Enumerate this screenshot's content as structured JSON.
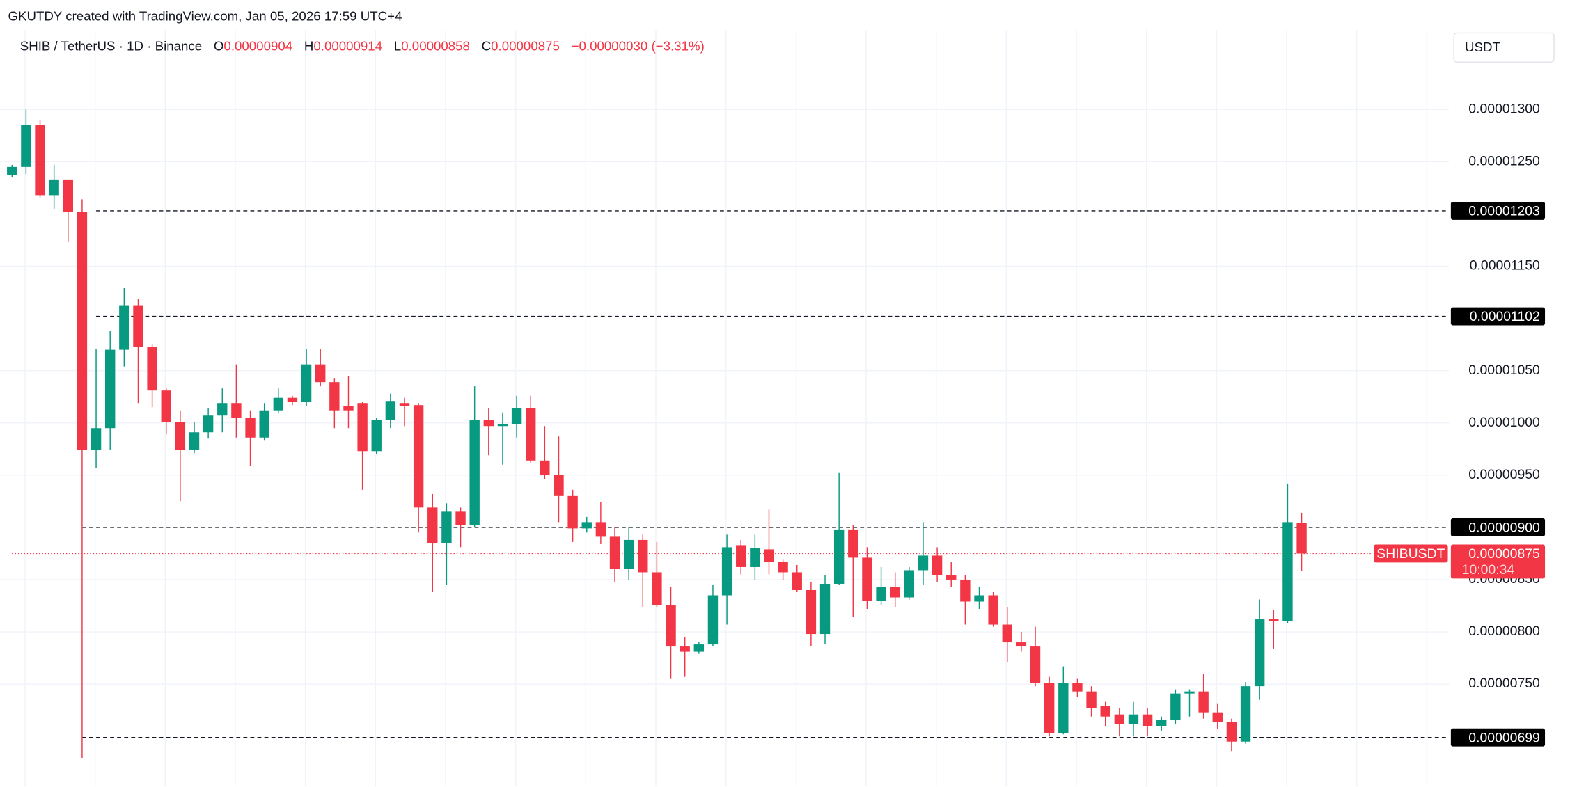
{
  "header": {
    "watermark": "GKUTDY created with TradingView.com, Jan 05, 2026 17:59 UTC+4",
    "currency": "USDT"
  },
  "chart_data": {
    "type": "candlestick",
    "title": "SHIB / TetherUS · 1D · Binance",
    "ohlc_legend": [
      {
        "label": "O",
        "value": "0.00000904"
      },
      {
        "label": "H",
        "value": "0.00000914"
      },
      {
        "label": "L",
        "value": "0.00000858"
      },
      {
        "label": "C",
        "value": "0.00000875"
      }
    ],
    "change": "−0.00000030 (−3.31%)",
    "up_color": "#089981",
    "down_color": "#f23645",
    "ylim": [
      6.52e-06,
      1.376e-05
    ],
    "yticks": [
      {
        "value": 1.3e-05,
        "label": "0.00001300"
      },
      {
        "value": 1.25e-05,
        "label": "0.00001250"
      },
      {
        "value": 1.15e-05,
        "label": "0.00001150"
      },
      {
        "value": 1.05e-05,
        "label": "0.00001050"
      },
      {
        "value": 1e-05,
        "label": "0.00001000"
      },
      {
        "value": 9.5e-06,
        "label": "0.00000950"
      },
      {
        "value": 8.5e-06,
        "label": "0.00000850"
      },
      {
        "value": 8e-06,
        "label": "0.00000800"
      },
      {
        "value": 7.5e-06,
        "label": "0.00000750"
      }
    ],
    "grid": true,
    "open": [
      1.237e-05,
      1.245e-05,
      1.285e-05,
      1.218e-05,
      1.233e-05,
      1.202e-05,
      9.74e-06,
      9.95e-06,
      1.07e-05,
      1.112e-05,
      1.073e-05,
      1.031e-05,
      1.001e-05,
      9.74e-06,
      9.91e-06,
      1.007e-05,
      1.019e-05,
      1.005e-05,
      9.86e-06,
      1.012e-05,
      1.024e-05,
      1.02e-05,
      1.056e-05,
      1.039e-05,
      1.016e-05,
      1.019e-05,
      9.73e-06,
      1.003e-05,
      1.019e-05,
      1.017e-05,
      9.19e-06,
      8.85e-06,
      9.15e-06,
      9.02e-06,
      1.003e-05,
      9.97e-06,
      9.99e-06,
      1.014e-05,
      9.64e-06,
      9.5e-06,
      9.3e-06,
      8.99e-06,
      9.05e-06,
      8.91e-06,
      8.6e-06,
      8.88e-06,
      8.57e-06,
      8.26e-06,
      7.86e-06,
      7.81e-06,
      7.88e-06,
      8.35e-06,
      8.83e-06,
      8.62e-06,
      8.79e-06,
      8.67e-06,
      8.57e-06,
      8.4e-06,
      7.98e-06,
      8.46e-06,
      8.98e-06,
      8.71e-06,
      8.3e-06,
      8.43e-06,
      8.33e-06,
      8.59e-06,
      8.73e-06,
      8.54e-06,
      8.5e-06,
      8.29e-06,
      8.35e-06,
      8.07e-06,
      7.9e-06,
      7.86e-06,
      7.51e-06,
      7.03e-06,
      7.51e-06,
      7.43e-06,
      7.29e-06,
      7.21e-06,
      7.12e-06,
      7.21e-06,
      7.1e-06,
      7.16e-06,
      7.41e-06,
      7.43e-06,
      7.23e-06,
      7.14e-06,
      6.95e-06,
      7.48e-06,
      8.12e-06,
      8.1e-06,
      9.04e-06
    ],
    "high": [
      1.247e-05,
      1.3e-05,
      1.29e-05,
      1.247e-05,
      1.233e-05,
      1.214e-05,
      1.071e-05,
      1.088e-05,
      1.129e-05,
      1.119e-05,
      1.075e-05,
      1.033e-05,
      1.012e-05,
      1.001e-05,
      1.014e-05,
      1.033e-05,
      1.056e-05,
      1.012e-05,
      1.019e-05,
      1.033e-05,
      1.026e-05,
      1.071e-05,
      1.071e-05,
      1.043e-05,
      1.045e-05,
      1.02e-05,
      1.005e-05,
      1.028e-05,
      1.024e-05,
      1.019e-05,
      9.32e-06,
      9.23e-06,
      9.19e-06,
      1.035e-05,
      1.014e-05,
      1.01e-05,
      1.026e-05,
      1.026e-05,
      9.97e-06,
      9.87e-06,
      9.36e-06,
      9.1e-06,
      9.24e-06,
      9e-06,
      9e-06,
      8.93e-06,
      8.86e-06,
      8.43e-06,
      7.95e-06,
      7.9e-06,
      8.45e-06,
      8.93e-06,
      8.88e-06,
      8.93e-06,
      9.17e-06,
      8.69e-06,
      8.64e-06,
      8.48e-06,
      8.54e-06,
      9.52e-06,
      9.02e-06,
      8.81e-06,
      8.62e-06,
      8.57e-06,
      8.62e-06,
      9.05e-06,
      8.81e-06,
      8.67e-06,
      8.54e-06,
      8.43e-06,
      8.38e-06,
      8.24e-06,
      8e-06,
      8.05e-06,
      7.57e-06,
      7.67e-06,
      7.55e-06,
      7.48e-06,
      7.33e-06,
      7.27e-06,
      7.33e-06,
      7.27e-06,
      7.19e-06,
      7.45e-06,
      7.45e-06,
      7.6e-06,
      7.31e-06,
      7.17e-06,
      7.52e-06,
      8.31e-06,
      8.21e-06,
      9.42e-06,
      9.14e-06
    ],
    "low": [
      1.235e-05,
      1.238e-05,
      1.216e-05,
      1.205e-05,
      1.173e-05,
      6.79e-06,
      9.57e-06,
      9.74e-06,
      1.054e-05,
      1.019e-05,
      1.015e-05,
      9.89e-06,
      9.25e-06,
      9.71e-06,
      9.85e-06,
      9.91e-06,
      9.86e-06,
      9.59e-06,
      9.83e-06,
      1.009e-05,
      1.017e-05,
      1.016e-05,
      1.035e-05,
      9.95e-06,
      9.95e-06,
      9.36e-06,
      9.7e-06,
      9.95e-06,
      9.97e-06,
      8.95e-06,
      8.38e-06,
      8.45e-06,
      8.81e-06,
      9e-06,
      9.69e-06,
      9.6e-06,
      9.86e-06,
      9.62e-06,
      9.46e-06,
      9.05e-06,
      8.86e-06,
      8.95e-06,
      8.84e-06,
      8.48e-06,
      8.5e-06,
      8.24e-06,
      8.24e-06,
      7.55e-06,
      7.57e-06,
      7.79e-06,
      7.86e-06,
      8.07e-06,
      8.55e-06,
      8.5e-06,
      8.55e-06,
      8.5e-06,
      8.38e-06,
      7.86e-06,
      7.88e-06,
      8.45e-06,
      8.14e-06,
      8.22e-06,
      8.26e-06,
      8.24e-06,
      8.31e-06,
      8.45e-06,
      8.48e-06,
      8.43e-06,
      8.07e-06,
      8.22e-06,
      8.05e-06,
      7.71e-06,
      7.81e-06,
      7.48e-06,
      7e-06,
      7.02e-06,
      7.38e-06,
      7.19e-06,
      7.1e-06,
      7e-06,
      7e-06,
      7e-06,
      7.05e-06,
      7.12e-06,
      7.19e-06,
      7.17e-06,
      7.07e-06,
      6.86e-06,
      6.93e-06,
      7.35e-06,
      7.84e-06,
      8.08e-06,
      8.58e-06
    ],
    "close": [
      1.245e-05,
      1.285e-05,
      1.218e-05,
      1.233e-05,
      1.202e-05,
      9.74e-06,
      9.95e-06,
      1.07e-05,
      1.112e-05,
      1.073e-05,
      1.031e-05,
      1.001e-05,
      9.74e-06,
      9.91e-06,
      1.007e-05,
      1.019e-05,
      1.005e-05,
      9.86e-06,
      1.012e-05,
      1.024e-05,
      1.02e-05,
      1.056e-05,
      1.039e-05,
      1.012e-05,
      1.012e-05,
      9.73e-06,
      1.003e-05,
      1.021e-05,
      1.016e-05,
      9.19e-06,
      8.85e-06,
      9.15e-06,
      9.02e-06,
      1.003e-05,
      9.97e-06,
      9.99e-06,
      1.014e-05,
      9.64e-06,
      9.5e-06,
      9.3e-06,
      8.99e-06,
      9.05e-06,
      8.91e-06,
      8.6e-06,
      8.88e-06,
      8.57e-06,
      8.26e-06,
      7.86e-06,
      7.81e-06,
      7.88e-06,
      8.35e-06,
      8.81e-06,
      8.62e-06,
      8.8e-06,
      8.67e-06,
      8.57e-06,
      8.4e-06,
      7.98e-06,
      8.46e-06,
      8.98e-06,
      8.71e-06,
      8.3e-06,
      8.43e-06,
      8.33e-06,
      8.59e-06,
      8.73e-06,
      8.54e-06,
      8.5e-06,
      8.29e-06,
      8.35e-06,
      8.07e-06,
      7.9e-06,
      7.86e-06,
      7.51e-06,
      7.03e-06,
      7.51e-06,
      7.43e-06,
      7.27e-06,
      7.19e-06,
      7.12e-06,
      7.21e-06,
      7.1e-06,
      7.16e-06,
      7.41e-06,
      7.43e-06,
      7.23e-06,
      7.14e-06,
      6.95e-06,
      7.48e-06,
      8.12e-06,
      8.1e-06,
      9.05e-06,
      8.75e-06
    ],
    "hlines": [
      {
        "value": 1.203e-05,
        "label": "0.00001203"
      },
      {
        "value": 1.102e-05,
        "label": "0.00001102"
      },
      {
        "value": 9e-06,
        "label": "0.00000900"
      },
      {
        "value": 6.99e-06,
        "label": "0.00000699"
      }
    ],
    "last_price": {
      "symbol": "SHIBUSDT",
      "value": 8.75e-06,
      "label": "0.00000875",
      "countdown": "10:00:34"
    }
  }
}
